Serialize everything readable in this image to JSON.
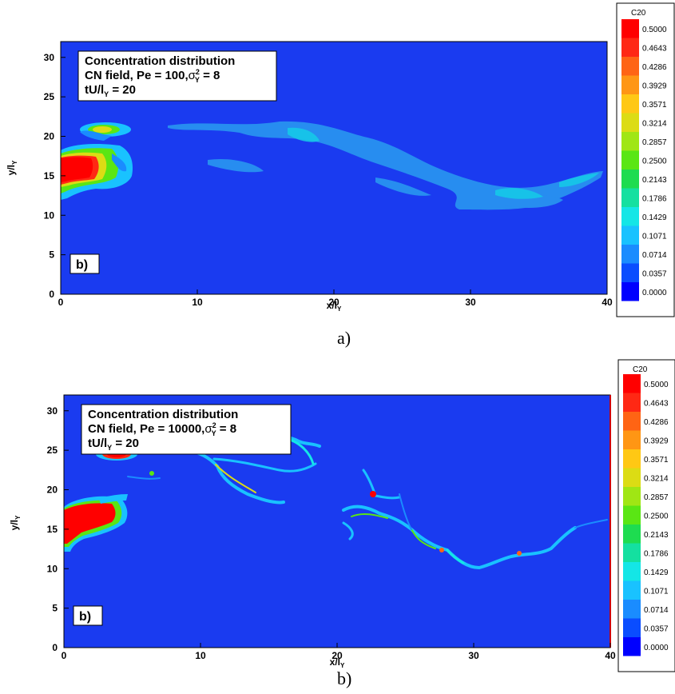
{
  "colors": {
    "field_bg": "#1a3bf0",
    "levels": [
      "#0000ff",
      "#0a4dff",
      "#1a8cff",
      "#19c2ff",
      "#14e6e6",
      "#14e0a0",
      "#1edc50",
      "#5ae614",
      "#a0e614",
      "#dcdc14",
      "#ffc814",
      "#ff9614",
      "#ff6414",
      "#ff2814",
      "#ff0000"
    ]
  },
  "panels": [
    {
      "caption": "a)",
      "annotation": {
        "line1": "Concentration distribution",
        "line2": "CN field, Pe = 100,",
        "sigma": "σ",
        "sigma_sup": "2",
        "sigma_sub": "Y",
        "sigma_rest": " = 8",
        "line3_a": "tU/l",
        "line3_sub": "Y",
        "line3_b": " = 20"
      },
      "tag": "b)",
      "legend_title": "C20",
      "legend_levels": [
        "0.5000",
        "0.4643",
        "0.4286",
        "0.3929",
        "0.3571",
        "0.3214",
        "0.2857",
        "0.2500",
        "0.2143",
        "0.1786",
        "0.1429",
        "0.1071",
        "0.0714",
        "0.0357",
        "0.0000"
      ],
      "xticks": [
        "0",
        "10",
        "20",
        "30",
        "40"
      ],
      "yticks": [
        "0",
        "5",
        "10",
        "15",
        "20",
        "25",
        "30"
      ],
      "xlabel": "x/l",
      "xlabel_sub": "Y",
      "ylabel": "y/l",
      "ylabel_sub": "Y"
    },
    {
      "caption": "b)",
      "annotation": {
        "line1": "Concentration distribution",
        "line2": "CN field, Pe = 10000,",
        "sigma": "σ",
        "sigma_sup": "2",
        "sigma_sub": "Y",
        "sigma_rest": " = 8",
        "line3_a": "tU/l",
        "line3_sub": "Y",
        "line3_b": " = 20"
      },
      "tag": "b)",
      "legend_title": "C20",
      "legend_levels": [
        "0.5000",
        "0.4643",
        "0.4286",
        "0.3929",
        "0.3571",
        "0.3214",
        "0.2857",
        "0.2500",
        "0.2143",
        "0.1786",
        "0.1429",
        "0.1071",
        "0.0714",
        "0.0357",
        "0.0000"
      ],
      "xticks": [
        "0",
        "10",
        "20",
        "30",
        "40"
      ],
      "yticks": [
        "0",
        "5",
        "10",
        "15",
        "20",
        "25",
        "30"
      ],
      "xlabel": "x/l",
      "xlabel_sub": "Y",
      "ylabel": "y/l",
      "ylabel_sub": "Y"
    }
  ],
  "chart_data": [
    {
      "type": "heatmap",
      "xlim": [
        0,
        40
      ],
      "ylim": [
        0,
        32
      ],
      "levels": [
        0.5,
        0.4643,
        0.4286,
        0.3929,
        0.3571,
        0.3214,
        0.2857,
        0.25,
        0.2143,
        0.1786,
        0.1429,
        0.1071,
        0.0714,
        0.0357,
        0.0
      ]
    },
    {
      "type": "heatmap",
      "xlim": [
        0,
        40
      ],
      "ylim": [
        0,
        32
      ],
      "levels": [
        0.5,
        0.4643,
        0.4286,
        0.3929,
        0.3571,
        0.3214,
        0.2857,
        0.25,
        0.2143,
        0.1786,
        0.1429,
        0.1071,
        0.0714,
        0.0357,
        0.0
      ]
    }
  ]
}
